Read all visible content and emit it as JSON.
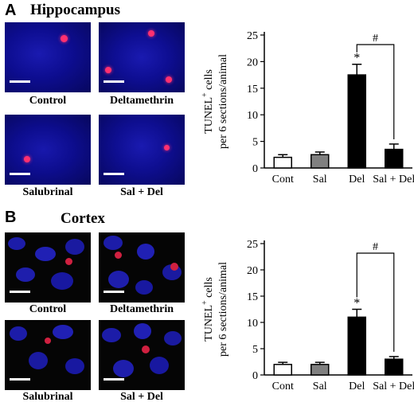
{
  "panels": [
    {
      "letter": "A",
      "region": "Hippocampus",
      "images": [
        {
          "label": "Control"
        },
        {
          "label": "Deltamethrin"
        },
        {
          "label": "Salubrinal"
        },
        {
          "label": "Sal + Del"
        }
      ]
    },
    {
      "letter": "B",
      "region": "Cortex",
      "images": [
        {
          "label": "Control"
        },
        {
          "label": "Deltamethrin"
        },
        {
          "label": "Salubrinal"
        },
        {
          "label": "Sal + Del"
        }
      ]
    }
  ],
  "chart_data": [
    {
      "type": "bar",
      "categories": [
        "Cont",
        "Sal",
        "Del",
        "Sal + Del"
      ],
      "values": [
        2.0,
        2.5,
        17.5,
        3.5
      ],
      "errors": [
        0.5,
        0.5,
        2.0,
        1.0
      ],
      "bar_colors": [
        "#ffffff",
        "#808080",
        "#000000",
        "#000000"
      ],
      "ylabel_line1": "TUNEL",
      "ylabel_sup": "+",
      "ylabel_line1_rest": " cells",
      "ylabel_line2": "per 6 sections/animal",
      "ylim": [
        0,
        25
      ],
      "yticks": [
        0,
        5,
        10,
        15,
        20,
        25
      ],
      "star_label": "*",
      "hash_label": "#"
    },
    {
      "type": "bar",
      "categories": [
        "Cont",
        "Sal",
        "Del",
        "Sal + Del"
      ],
      "values": [
        2.0,
        2.0,
        11.0,
        3.0
      ],
      "errors": [
        0.4,
        0.4,
        1.5,
        0.5
      ],
      "bar_colors": [
        "#ffffff",
        "#808080",
        "#000000",
        "#000000"
      ],
      "ylabel_line1": "TUNEL",
      "ylabel_sup": "+",
      "ylabel_line1_rest": " cells",
      "ylabel_line2": "per 6 sections/animal",
      "ylim": [
        0,
        25
      ],
      "yticks": [
        0,
        5,
        10,
        15,
        20,
        25
      ],
      "star_label": "*",
      "hash_label": "#"
    }
  ]
}
